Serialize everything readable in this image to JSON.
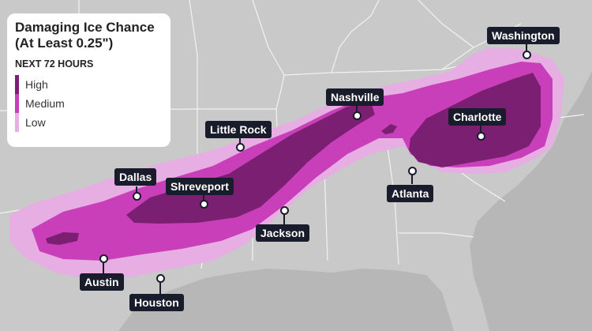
{
  "legend": {
    "title_line1": "Damaging Ice Chance",
    "title_line2": "(At Least 0.25\")",
    "subtitle": "NEXT 72 HOURS",
    "levels": [
      {
        "label": "High",
        "color": "#7b1f72"
      },
      {
        "label": "Medium",
        "color": "#c93fb9"
      },
      {
        "label": "Low",
        "color": "#e6aee3"
      }
    ]
  },
  "colors": {
    "land": "#c9c9c9",
    "water": "#b7b7b7",
    "borders": "#f2f2f2",
    "label_bg": "#181c2b"
  },
  "cities": [
    {
      "name": "Washington"
    },
    {
      "name": "Nashville"
    },
    {
      "name": "Charlotte"
    },
    {
      "name": "Little Rock"
    },
    {
      "name": "Dallas"
    },
    {
      "name": "Shreveport"
    },
    {
      "name": "Atlanta"
    },
    {
      "name": "Jackson"
    },
    {
      "name": "Austin"
    },
    {
      "name": "Houston"
    }
  ]
}
